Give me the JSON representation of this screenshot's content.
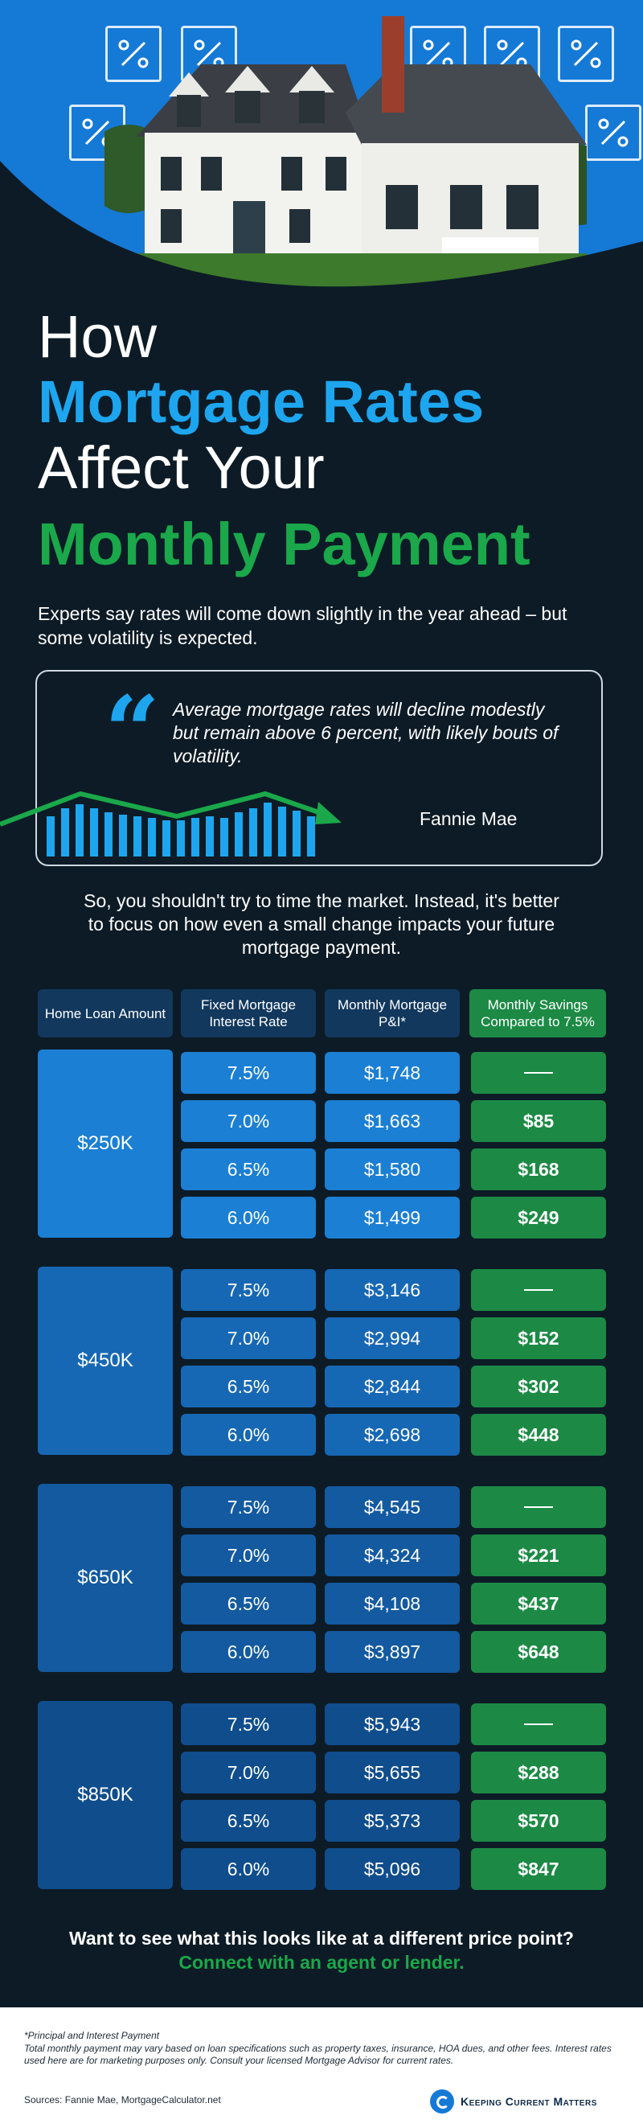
{
  "title": {
    "line1": "How",
    "line2": "Mortgage Rates",
    "line3": "Affect Your",
    "line4": "Monthly Payment"
  },
  "intro": "Experts say rates will come down slightly in the year ahead – but some volatility is expected.",
  "quote": {
    "text": "Average mortgage rates will decline modestly but remain above 6 percent, with likely bouts of volatility.",
    "author": "Fannie Mae",
    "mark": "“"
  },
  "middle_text": "So, you shouldn't try to time the market. Instead, it's better to focus on how even a small change impacts your future mortgage payment.",
  "table": {
    "headers": [
      "Home Loan Amount",
      "Fixed Mortgage Interest Rate",
      "Monthly Mortgage P&I*",
      "Monthly Savings Compared to 7.5%"
    ],
    "groups": [
      {
        "amount": "$250K",
        "rows": [
          {
            "rate": "7.5%",
            "payment": "$1,748",
            "savings": ""
          },
          {
            "rate": "7.0%",
            "payment": "$1,663",
            "savings": "$85"
          },
          {
            "rate": "6.5%",
            "payment": "$1,580",
            "savings": "$168"
          },
          {
            "rate": "6.0%",
            "payment": "$1,499",
            "savings": "$249"
          }
        ]
      },
      {
        "amount": "$450K",
        "rows": [
          {
            "rate": "7.5%",
            "payment": "$3,146",
            "savings": ""
          },
          {
            "rate": "7.0%",
            "payment": "$2,994",
            "savings": "$152"
          },
          {
            "rate": "6.5%",
            "payment": "$2,844",
            "savings": "$302"
          },
          {
            "rate": "6.0%",
            "payment": "$2,698",
            "savings": "$448"
          }
        ]
      },
      {
        "amount": "$650K",
        "rows": [
          {
            "rate": "7.5%",
            "payment": "$4,545",
            "savings": ""
          },
          {
            "rate": "7.0%",
            "payment": "$4,324",
            "savings": "$221"
          },
          {
            "rate": "6.5%",
            "payment": "$4,108",
            "savings": "$437"
          },
          {
            "rate": "6.0%",
            "payment": "$3,897",
            "savings": "$648"
          }
        ]
      },
      {
        "amount": "$850K",
        "rows": [
          {
            "rate": "7.5%",
            "payment": "$5,943",
            "savings": ""
          },
          {
            "rate": "7.0%",
            "payment": "$5,655",
            "savings": "$288"
          },
          {
            "rate": "6.5%",
            "payment": "$5,373",
            "savings": "$570"
          },
          {
            "rate": "6.0%",
            "payment": "$5,096",
            "savings": "$847"
          }
        ]
      }
    ],
    "group_colors": [
      "#1b7fd4",
      "#1768b4",
      "#135aa0",
      "#104d8c"
    ]
  },
  "cta": {
    "line1": "Want to see what this looks like at a different price point?",
    "line2": "Connect with an agent or lender."
  },
  "footer": {
    "note1": "*Principal and Interest Payment",
    "note2": "Total monthly payment may vary based on loan specifications such as property taxes, insurance, HOA dues, and other fees. Interest rates used here are for marketing purposes only. Consult your licensed Mortgage Advisor for current rates.",
    "sources": "Sources: Fannie Mae, MortgageCalculator.net",
    "logo": "Keeping Current Matters"
  },
  "colors": {
    "background": "#0d1b26",
    "accent_blue": "#1da6ef",
    "accent_green": "#1aa84a",
    "savings_green": "#1c8a45",
    "header_dark": "#12385d"
  },
  "icons": [
    "percent-icon",
    "house-photo",
    "quote-mark-icon",
    "bar-chart-trend-icon",
    "dash-icon",
    "kcm-logo-icon"
  ]
}
